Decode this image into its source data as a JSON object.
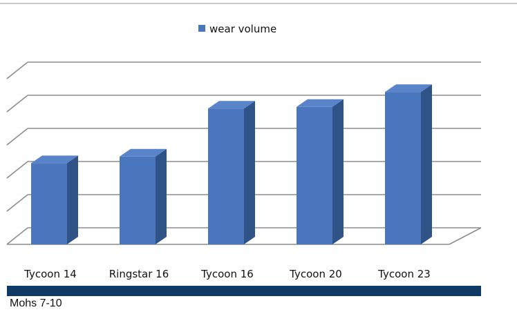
{
  "chart_data": {
    "type": "bar",
    "style": "3d-column",
    "categories": [
      "Tycoon 14",
      "Ringstar 16",
      "Tycoon 16",
      "Tycoon 20",
      "Tycoon 23"
    ],
    "series": [
      {
        "name": "wear volume",
        "values": [
          2.45,
          2.65,
          4.1,
          4.15,
          4.6
        ]
      }
    ],
    "ylim": [
      0,
      5
    ],
    "y_axis_labels_visible": false,
    "grid": true,
    "legend": "top-center",
    "colors": {
      "front": "#4a76bd",
      "side": "#2f5287",
      "top": "#5a84c9"
    }
  },
  "footer": {
    "note": "Mohs 7-10"
  }
}
